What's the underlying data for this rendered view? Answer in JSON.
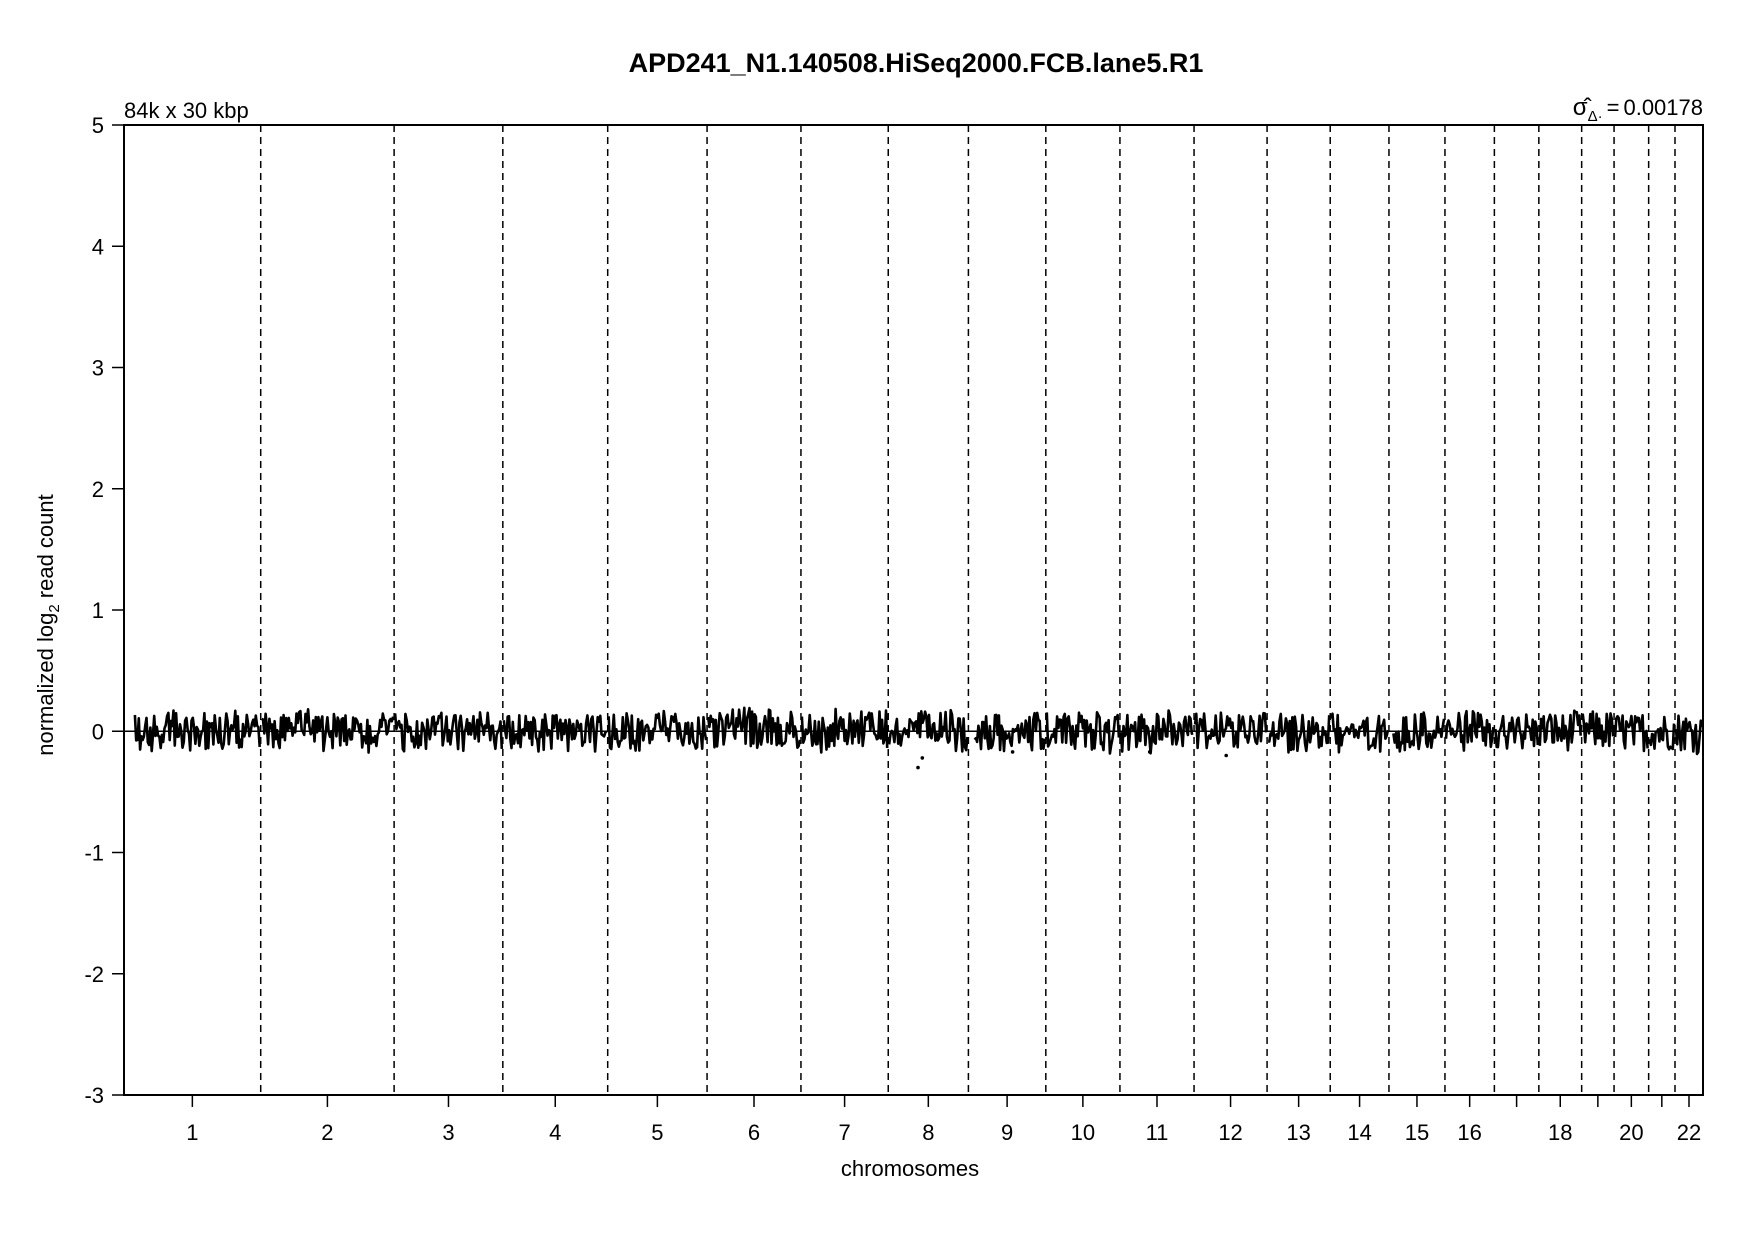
{
  "chart_data": {
    "type": "scatter",
    "title": "APD241_N1.140508.HiSeq2000.FCB.lane5.R1",
    "subtitle": "84k x 30 kbp",
    "annotation": {
      "symbol": "σ̂",
      "subscript": "Δ·",
      "equals": "=",
      "value": "0.00178"
    },
    "xlabel": "chromosomes",
    "ylabel": {
      "prefix": "normalized log",
      "subscript": "2",
      "suffix": " read count"
    },
    "ylim": [
      -3,
      5
    ],
    "yticks": [
      "-3",
      "-2",
      "-1",
      "0",
      "1",
      "2",
      "3",
      "4",
      "5"
    ],
    "reference_line_y": 0,
    "grid": false,
    "line_color": "#000000",
    "chromosomes": [
      {
        "label": "1",
        "length": 249
      },
      {
        "label": "2",
        "length": 243
      },
      {
        "label": "3",
        "length": 198
      },
      {
        "label": "4",
        "length": 191
      },
      {
        "label": "5",
        "length": 181
      },
      {
        "label": "6",
        "length": 171
      },
      {
        "label": "7",
        "length": 159
      },
      {
        "label": "8",
        "length": 146
      },
      {
        "label": "9",
        "length": 141
      },
      {
        "label": "10",
        "length": 135
      },
      {
        "label": "11",
        "length": 135
      },
      {
        "label": "12",
        "length": 133
      },
      {
        "label": "13",
        "length": 115
      },
      {
        "label": "14",
        "length": 107
      },
      {
        "label": "15",
        "length": 102
      },
      {
        "label": "16",
        "length": 90
      },
      {
        "label": "",
        "length": 81
      },
      {
        "label": "18",
        "length": 78
      },
      {
        "label": "",
        "length": 59
      },
      {
        "label": "20",
        "length": 63
      },
      {
        "label": "",
        "length": 48
      },
      {
        "label": "22",
        "length": 51
      }
    ],
    "series": [
      {
        "values_min": -0.2,
        "values_max": 0.2,
        "outliers": [
          {
            "chromosome": "8",
            "y": -0.22
          },
          {
            "chromosome": "8",
            "y": -0.3
          },
          {
            "chromosome": "9",
            "y": -0.17
          },
          {
            "chromosome": "11",
            "y": -0.17
          },
          {
            "chromosome": "12",
            "y": -0.2
          }
        ]
      }
    ]
  }
}
